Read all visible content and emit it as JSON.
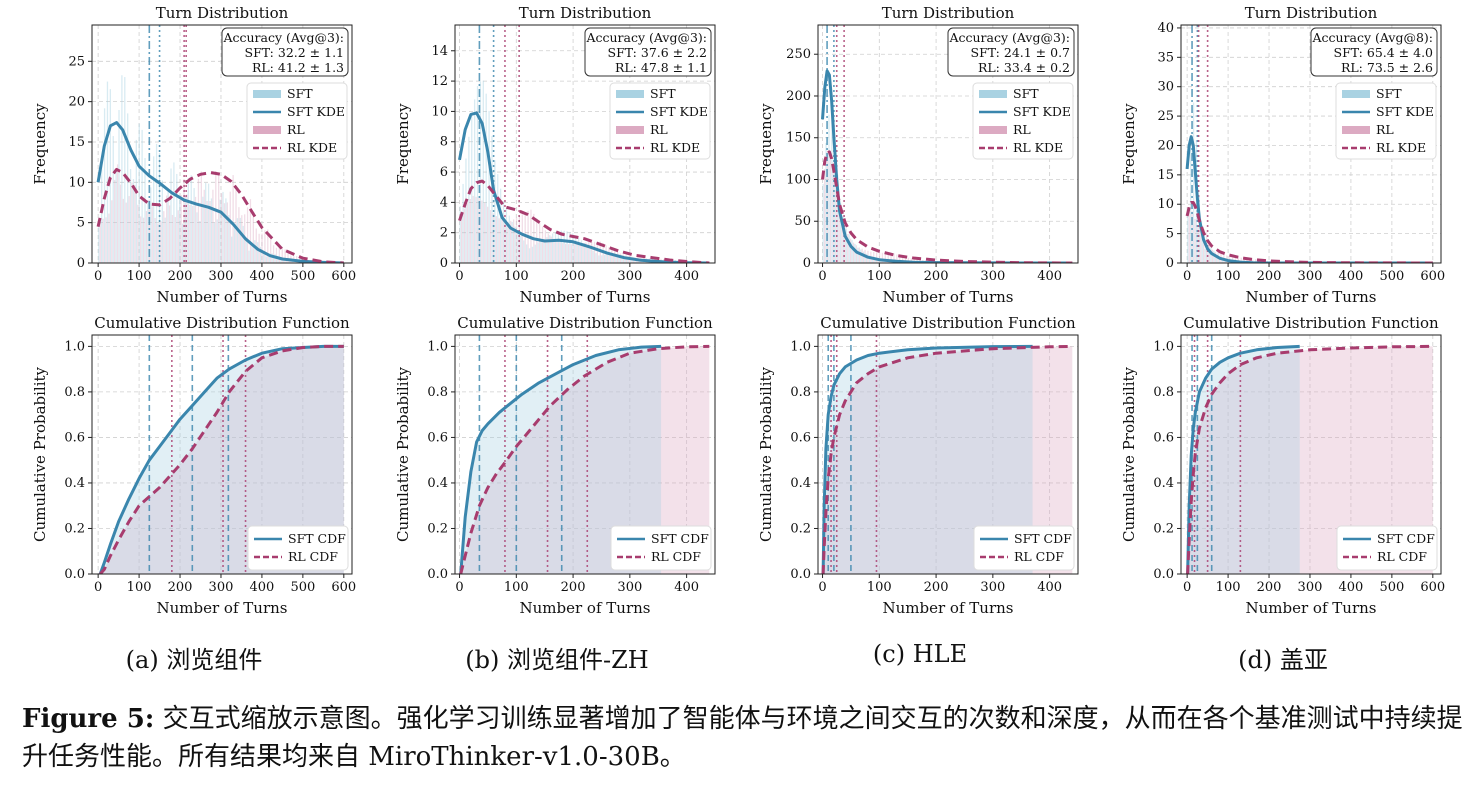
{
  "colors": {
    "sft": "#3a86ad",
    "rl": "#a83c6e",
    "sft_fill": "#a9d2e2",
    "rl_fill": "#dcaac2"
  },
  "figure": {
    "caption_label": "Figure 5:",
    "caption_text": "交互式缩放示意图。强化学习训练显著增加了智能体与环境之间交互的次数和深度，从而在各个基准测试中持续提升任务性能。所有结果均来自 MiroThinker-v1.0-30B。"
  },
  "chart_data": [
    {
      "type": "line",
      "panel": "hist",
      "col": 0,
      "title": "Turn Distribution",
      "xlabel": "Number of Turns",
      "ylabel": "Frequency",
      "xlim": [
        -15,
        620
      ],
      "ylim": [
        0,
        29.5
      ],
      "xticks": [
        0,
        100,
        200,
        300,
        400,
        500,
        600
      ],
      "yticks": [
        0,
        5,
        10,
        15,
        20,
        25
      ],
      "accuracy_title": "Accuracy (Avg@3):",
      "accuracy_sft": "SFT: 32.2 ± 1.1",
      "accuracy_rl": "RL: 41.2 ± 1.3",
      "legend": [
        "SFT",
        "SFT KDE",
        "RL",
        "RL KDE"
      ],
      "vlines": {
        "sft": [
          125,
          150
        ],
        "rl": [
          210,
          215
        ]
      },
      "series": [
        {
          "name": "SFT KDE",
          "x": [
            0,
            15,
            30,
            45,
            60,
            80,
            100,
            125,
            150,
            180,
            210,
            240,
            270,
            300,
            330,
            360,
            390,
            420,
            450,
            500,
            550,
            600
          ],
          "values": [
            10,
            14.5,
            17,
            17.4,
            16.5,
            14,
            12,
            10.8,
            9.9,
            8.7,
            7.8,
            7.3,
            6.9,
            6.3,
            4.8,
            3,
            1.7,
            0.9,
            0.5,
            0.2,
            0.08,
            0
          ]
        },
        {
          "name": "RL KDE",
          "x": [
            0,
            15,
            30,
            45,
            60,
            80,
            100,
            125,
            150,
            175,
            200,
            225,
            250,
            275,
            300,
            325,
            350,
            375,
            400,
            450,
            500,
            550,
            600
          ],
          "values": [
            4.5,
            8,
            10.6,
            11.6,
            11.2,
            9.9,
            8.3,
            7.3,
            7.2,
            8,
            9.3,
            10.4,
            11,
            11.2,
            11,
            10.1,
            8.5,
            6.4,
            4.4,
            1.7,
            0.6,
            0.15,
            0
          ]
        }
      ]
    },
    {
      "type": "line",
      "panel": "hist",
      "col": 1,
      "title": "Turn Distribution",
      "xlabel": "Number of Turns",
      "ylabel": "Frequency",
      "xlim": [
        -8,
        450
      ],
      "ylim": [
        0,
        15.7
      ],
      "xticks": [
        0,
        100,
        200,
        300,
        400
      ],
      "yticks": [
        0,
        2,
        4,
        6,
        8,
        10,
        12,
        14
      ],
      "accuracy_title": "Accuracy (Avg@3):",
      "accuracy_sft": "SFT: 37.6 ± 2.2",
      "accuracy_rl": "RL: 47.8 ± 1.1",
      "legend": [
        "SFT",
        "SFT KDE",
        "RL",
        "RL KDE"
      ],
      "vlines": {
        "sft": [
          35,
          60
        ],
        "rl": [
          80,
          105
        ]
      },
      "series": [
        {
          "name": "SFT KDE",
          "x": [
            0,
            10,
            20,
            30,
            40,
            50,
            60,
            75,
            90,
            110,
            130,
            150,
            175,
            200,
            230,
            260,
            290,
            320,
            360,
            400,
            440
          ],
          "values": [
            6.8,
            8.8,
            9.8,
            9.9,
            9.2,
            7.3,
            4.8,
            3,
            2.3,
            1.9,
            1.6,
            1.45,
            1.5,
            1.4,
            1.05,
            0.65,
            0.35,
            0.18,
            0.07,
            0.02,
            0
          ]
        },
        {
          "name": "RL KDE",
          "x": [
            0,
            10,
            20,
            30,
            40,
            50,
            65,
            80,
            100,
            120,
            140,
            160,
            180,
            200,
            220,
            250,
            280,
            310,
            340,
            370,
            400,
            440
          ],
          "values": [
            2.8,
            3.9,
            4.9,
            5.3,
            5.4,
            5.1,
            4.4,
            3.7,
            3.5,
            3.2,
            2.7,
            2.2,
            1.9,
            1.75,
            1.6,
            1.2,
            0.8,
            0.5,
            0.35,
            0.2,
            0.1,
            0
          ]
        }
      ]
    },
    {
      "type": "line",
      "panel": "hist",
      "col": 2,
      "title": "Turn Distribution",
      "xlabel": "Number of Turns",
      "ylabel": "Frequency",
      "xlim": [
        -8,
        450
      ],
      "ylim": [
        0,
        285
      ],
      "xticks": [
        0,
        100,
        200,
        300,
        400
      ],
      "yticks": [
        0,
        50,
        100,
        150,
        200,
        250
      ],
      "accuracy_title": "Accuracy (Avg@3):",
      "accuracy_sft": "SFT: 24.1 ± 0.7",
      "accuracy_rl": "RL: 33.4 ± 0.2",
      "legend": [
        "SFT",
        "SFT KDE",
        "RL",
        "RL KDE"
      ],
      "vlines": {
        "sft": [
          8,
          20
        ],
        "rl": [
          25,
          38
        ]
      },
      "series": [
        {
          "name": "SFT KDE",
          "x": [
            0,
            4,
            8,
            12,
            16,
            20,
            25,
            30,
            40,
            50,
            60,
            80,
            100,
            130,
            160,
            200,
            250,
            300,
            350,
            400,
            440
          ],
          "values": [
            172,
            210,
            230,
            225,
            195,
            150,
            100,
            62,
            32,
            20,
            13,
            7,
            4,
            2,
            1,
            0.5,
            0.2,
            0.1,
            0.05,
            0,
            0
          ]
        },
        {
          "name": "RL KDE",
          "x": [
            0,
            4,
            8,
            12,
            16,
            20,
            25,
            30,
            40,
            50,
            60,
            80,
            100,
            130,
            160,
            200,
            250,
            300,
            350,
            400,
            440
          ],
          "values": [
            100,
            122,
            132,
            133,
            125,
            110,
            90,
            70,
            48,
            36,
            28,
            19,
            14,
            9,
            6,
            3.5,
            1.8,
            0.9,
            0.4,
            0.15,
            0
          ]
        }
      ]
    },
    {
      "type": "line",
      "panel": "hist",
      "col": 3,
      "title": "Turn Distribution",
      "xlabel": "Number of Turns",
      "ylabel": "Frequency",
      "xlim": [
        -15,
        620
      ],
      "ylim": [
        0,
        40.5
      ],
      "xticks": [
        0,
        100,
        200,
        300,
        400,
        500,
        600
      ],
      "yticks": [
        0,
        5,
        10,
        15,
        20,
        25,
        30,
        35,
        40
      ],
      "accuracy_title": "Accuracy (Avg@8):",
      "accuracy_sft": "SFT: 65.4 ± 4.0",
      "accuracy_rl": "RL: 73.5 ± 2.6",
      "legend": [
        "SFT",
        "SFT KDE",
        "RL",
        "RL KDE"
      ],
      "vlines": {
        "sft": [
          12,
          25
        ],
        "rl": [
          28,
          50
        ]
      },
      "series": [
        {
          "name": "SFT KDE",
          "x": [
            0,
            5,
            10,
            15,
            20,
            25,
            30,
            40,
            50,
            60,
            80,
            100,
            130,
            160,
            200,
            250,
            300,
            400,
            500,
            600
          ],
          "values": [
            16,
            20,
            21.5,
            20,
            15.5,
            11,
            7.5,
            4,
            2.4,
            1.6,
            0.8,
            0.4,
            0.15,
            0.05,
            0,
            0,
            0,
            0,
            0,
            0
          ]
        },
        {
          "name": "RL KDE",
          "x": [
            0,
            5,
            10,
            15,
            20,
            25,
            30,
            40,
            50,
            60,
            80,
            100,
            130,
            160,
            200,
            250,
            300,
            400,
            500,
            600
          ],
          "values": [
            8,
            9.5,
            10.3,
            10.3,
            9.6,
            8.5,
            7.2,
            5.2,
            3.8,
            2.9,
            1.9,
            1.4,
            0.9,
            0.6,
            0.35,
            0.2,
            0.1,
            0.03,
            0.01,
            0
          ]
        }
      ]
    },
    {
      "type": "line",
      "panel": "cdf",
      "col": 0,
      "title": "Cumulative Distribution Function",
      "xlabel": "Number of Turns",
      "ylabel": "Cumulative Probability",
      "xlim": [
        -15,
        620
      ],
      "ylim": [
        0,
        1.05
      ],
      "xticks": [
        0,
        100,
        200,
        300,
        400,
        500,
        600
      ],
      "yticks": [
        0,
        0.2,
        0.4,
        0.6,
        0.8,
        1.0
      ],
      "ytick_labels": [
        "0.0",
        "0.2",
        "0.4",
        "0.6",
        "0.8",
        "1.0"
      ],
      "legend": [
        "SFT CDF",
        "RL CDF"
      ],
      "fill_end": {
        "sft": 600,
        "rl": 600
      },
      "vlines": {
        "sft": [
          125,
          230,
          318
        ],
        "rl": [
          180,
          305,
          360
        ]
      },
      "series": [
        {
          "name": "SFT CDF",
          "x": [
            5,
            15,
            30,
            50,
            75,
            100,
            125,
            150,
            175,
            200,
            230,
            260,
            290,
            320,
            360,
            400,
            450,
            500,
            550,
            600
          ],
          "values": [
            0,
            0.05,
            0.13,
            0.23,
            0.33,
            0.42,
            0.5,
            0.56,
            0.62,
            0.68,
            0.74,
            0.8,
            0.86,
            0.9,
            0.94,
            0.97,
            0.99,
            0.995,
            1.0,
            1.0
          ]
        },
        {
          "name": "RL CDF",
          "x": [
            5,
            15,
            30,
            50,
            75,
            100,
            125,
            150,
            175,
            200,
            230,
            260,
            290,
            320,
            360,
            400,
            450,
            500,
            550,
            600
          ],
          "values": [
            0,
            0.02,
            0.08,
            0.15,
            0.23,
            0.3,
            0.34,
            0.38,
            0.43,
            0.48,
            0.55,
            0.63,
            0.71,
            0.8,
            0.89,
            0.95,
            0.98,
            0.995,
            1.0,
            1.0
          ]
        }
      ]
    },
    {
      "type": "line",
      "panel": "cdf",
      "col": 1,
      "title": "Cumulative Distribution Function",
      "xlabel": "Number of Turns",
      "ylabel": "Cumulative Probability",
      "xlim": [
        -8,
        450
      ],
      "ylim": [
        0,
        1.05
      ],
      "xticks": [
        0,
        100,
        200,
        300,
        400
      ],
      "yticks": [
        0,
        0.2,
        0.4,
        0.6,
        0.8,
        1.0
      ],
      "ytick_labels": [
        "0.0",
        "0.2",
        "0.4",
        "0.6",
        "0.8",
        "1.0"
      ],
      "legend": [
        "SFT CDF",
        "RL CDF"
      ],
      "fill_end": {
        "sft": 355,
        "rl": 440
      },
      "vlines": {
        "sft": [
          35,
          100,
          180
        ],
        "rl": [
          80,
          155,
          225
        ]
      },
      "series": [
        {
          "name": "SFT CDF",
          "x": [
            2,
            10,
            20,
            30,
            40,
            50,
            70,
            90,
            110,
            140,
            170,
            200,
            240,
            280,
            320,
            355
          ],
          "values": [
            0,
            0.25,
            0.45,
            0.58,
            0.63,
            0.66,
            0.71,
            0.75,
            0.79,
            0.84,
            0.88,
            0.92,
            0.96,
            0.985,
            0.997,
            1.0
          ]
        },
        {
          "name": "RL CDF",
          "x": [
            2,
            10,
            20,
            35,
            50,
            65,
            80,
            100,
            120,
            140,
            160,
            190,
            220,
            260,
            300,
            350,
            400,
            440
          ],
          "values": [
            0,
            0.08,
            0.18,
            0.3,
            0.38,
            0.44,
            0.49,
            0.56,
            0.62,
            0.68,
            0.74,
            0.81,
            0.87,
            0.93,
            0.97,
            0.99,
            0.998,
            1.0
          ]
        }
      ]
    },
    {
      "type": "line",
      "panel": "cdf",
      "col": 2,
      "title": "Cumulative Distribution Function",
      "xlabel": "Number of Turns",
      "ylabel": "Cumulative Probability",
      "xlim": [
        -8,
        450
      ],
      "ylim": [
        0,
        1.05
      ],
      "xticks": [
        0,
        100,
        200,
        300,
        400
      ],
      "yticks": [
        0,
        0.2,
        0.4,
        0.6,
        0.8,
        1.0
      ],
      "ytick_labels": [
        "0.0",
        "0.2",
        "0.4",
        "0.6",
        "0.8",
        "1.0"
      ],
      "legend": [
        "SFT CDF",
        "RL CDF"
      ],
      "fill_end": {
        "sft": 370,
        "rl": 440
      },
      "vlines": {
        "sft": [
          10,
          20,
          50
        ],
        "rl": [
          15,
          25,
          95
        ]
      },
      "series": [
        {
          "name": "SFT CDF",
          "x": [
            1,
            3,
            6,
            10,
            15,
            20,
            30,
            40,
            60,
            80,
            100,
            150,
            200,
            300,
            370
          ],
          "values": [
            0,
            0.3,
            0.55,
            0.7,
            0.78,
            0.83,
            0.88,
            0.91,
            0.94,
            0.96,
            0.97,
            0.985,
            0.993,
            0.999,
            1.0
          ]
        },
        {
          "name": "RL CDF",
          "x": [
            1,
            3,
            6,
            10,
            15,
            20,
            30,
            40,
            60,
            80,
            100,
            150,
            200,
            300,
            400,
            440
          ],
          "values": [
            0,
            0.12,
            0.27,
            0.42,
            0.53,
            0.6,
            0.7,
            0.76,
            0.84,
            0.88,
            0.91,
            0.95,
            0.97,
            0.99,
            0.998,
            1.0
          ]
        }
      ]
    },
    {
      "type": "line",
      "panel": "cdf",
      "col": 3,
      "title": "Cumulative Distribution Function",
      "xlabel": "Number of Turns",
      "ylabel": "Cumulative Probability",
      "xlim": [
        -15,
        620
      ],
      "ylim": [
        0,
        1.05
      ],
      "xticks": [
        0,
        100,
        200,
        300,
        400,
        500,
        600
      ],
      "yticks": [
        0,
        0.2,
        0.4,
        0.6,
        0.8,
        1.0
      ],
      "ytick_labels": [
        "0.0",
        "0.2",
        "0.4",
        "0.6",
        "0.8",
        "1.0"
      ],
      "legend": [
        "SFT CDF",
        "RL CDF"
      ],
      "fill_end": {
        "sft": 275,
        "rl": 600
      },
      "vlines": {
        "sft": [
          12,
          25,
          60
        ],
        "rl": [
          18,
          50,
          130
        ]
      },
      "series": [
        {
          "name": "SFT CDF",
          "x": [
            1,
            5,
            10,
            15,
            20,
            30,
            45,
            60,
            80,
            100,
            130,
            170,
            220,
            275
          ],
          "values": [
            0,
            0.3,
            0.52,
            0.64,
            0.71,
            0.8,
            0.86,
            0.9,
            0.93,
            0.95,
            0.97,
            0.985,
            0.995,
            1.0
          ]
        },
        {
          "name": "RL CDF",
          "x": [
            1,
            5,
            10,
            15,
            20,
            30,
            45,
            60,
            80,
            100,
            130,
            170,
            220,
            300,
            400,
            500,
            600
          ],
          "values": [
            0,
            0.15,
            0.32,
            0.44,
            0.53,
            0.64,
            0.73,
            0.79,
            0.84,
            0.88,
            0.92,
            0.95,
            0.97,
            0.985,
            0.993,
            0.998,
            1.0
          ]
        }
      ]
    }
  ],
  "subcaptions": [
    "(a) 浏览组件",
    "(b) 浏览组件-ZH",
    "(c) HLE",
    "(d) 盖亚"
  ]
}
